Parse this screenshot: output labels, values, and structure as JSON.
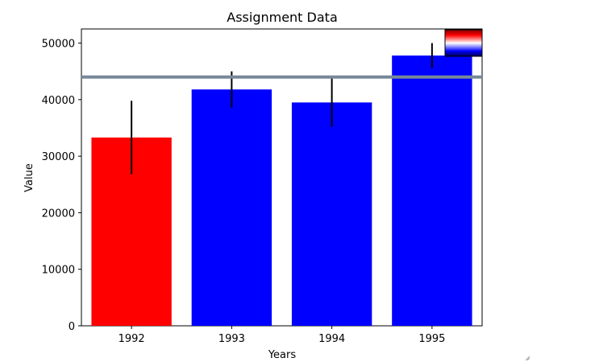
{
  "chart_data": {
    "type": "bar",
    "title": "Assignment Data",
    "xlabel": "Years",
    "ylabel": "Value",
    "categories": [
      "1992",
      "1993",
      "1994",
      "1995"
    ],
    "values": [
      33300,
      41800,
      39500,
      47800
    ],
    "error": [
      6500,
      3200,
      4300,
      2200
    ],
    "bar_colors": [
      "#ff0000",
      "#0000ff",
      "#0000ff",
      "#0000ff"
    ],
    "reference_line": {
      "value": 44000,
      "color": "#778899"
    },
    "ylim": [
      0,
      52500
    ],
    "yticks": [
      0,
      10000,
      20000,
      30000,
      40000,
      50000
    ],
    "yticks_labels": [
      "0",
      "10000",
      "20000",
      "30000",
      "40000",
      "50000"
    ],
    "colorbar": {
      "colormap": "seismic",
      "placement": "top-right"
    },
    "grid": false
  }
}
